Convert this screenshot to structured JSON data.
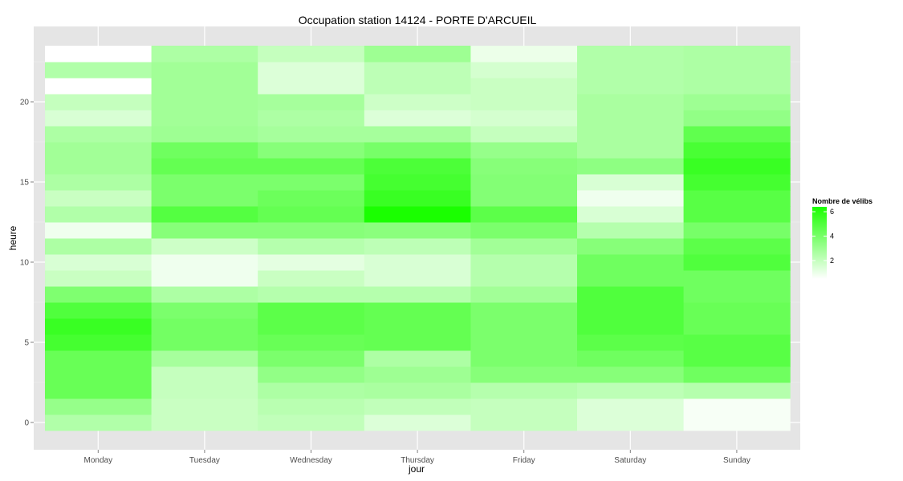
{
  "chart_data": {
    "type": "heatmap",
    "title": "Occupation station 14124 - PORTE D'ARCUEIL",
    "xlabel": "jour",
    "ylabel": "heure",
    "x_categories": [
      "Monday",
      "Tuesday",
      "Wednesday",
      "Thursday",
      "Friday",
      "Saturday",
      "Sunday"
    ],
    "y_values": [
      0,
      1,
      2,
      3,
      4,
      5,
      6,
      7,
      8,
      9,
      10,
      11,
      12,
      13,
      14,
      15,
      16,
      17,
      18,
      19,
      20,
      21,
      22,
      23
    ],
    "y_ticks": [
      0,
      5,
      10,
      15,
      20
    ],
    "ylim": [
      -0.5,
      23.5
    ],
    "grid": true,
    "legend": {
      "title": "Nombre de vélibs",
      "ticks": [
        2,
        4,
        6
      ],
      "range": [
        0.5,
        6.4
      ],
      "low_color": "#ffffff",
      "high_color": "#1aff00",
      "position": "right"
    },
    "values": [
      [
        2.5,
        1.9,
        2.1,
        1.4,
        2.0,
        1.4,
        0.7
      ],
      [
        3.2,
        1.9,
        2.3,
        2.1,
        2.0,
        1.4,
        0.7
      ],
      [
        4.4,
        2.0,
        2.6,
        2.7,
        2.4,
        2.2,
        2.4
      ],
      [
        4.4,
        2.0,
        3.3,
        3.0,
        3.6,
        3.6,
        4.2
      ],
      [
        4.4,
        2.8,
        3.9,
        2.6,
        3.9,
        4.2,
        4.8
      ],
      [
        5.3,
        4.1,
        4.4,
        4.5,
        3.9,
        4.7,
        4.8
      ],
      [
        5.6,
        4.1,
        4.7,
        4.5,
        3.9,
        5.0,
        4.4
      ],
      [
        5.0,
        3.9,
        4.7,
        4.5,
        3.9,
        5.0,
        4.4
      ],
      [
        3.8,
        2.6,
        2.4,
        2.4,
        2.9,
        5.0,
        4.2
      ],
      [
        1.9,
        0.9,
        1.9,
        1.5,
        2.4,
        4.2,
        4.2
      ],
      [
        1.5,
        0.9,
        1.2,
        1.5,
        2.4,
        4.2,
        5.0
      ],
      [
        2.6,
        1.8,
        2.4,
        2.2,
        2.9,
        3.6,
        4.7
      ],
      [
        0.9,
        3.6,
        3.6,
        3.5,
        3.9,
        2.4,
        4.0
      ],
      [
        2.5,
        4.9,
        4.5,
        6.4,
        4.7,
        1.5,
        4.8
      ],
      [
        1.9,
        3.9,
        4.3,
        5.6,
        3.7,
        0.9,
        4.8
      ],
      [
        2.6,
        3.9,
        3.9,
        5.3,
        3.7,
        1.5,
        5.3
      ],
      [
        2.9,
        4.5,
        4.5,
        5.1,
        3.6,
        3.4,
        5.6
      ],
      [
        2.9,
        4.2,
        3.6,
        4.0,
        3.2,
        2.7,
        5.2
      ],
      [
        2.6,
        3.0,
        2.8,
        2.8,
        2.0,
        2.7,
        4.6
      ],
      [
        1.5,
        2.9,
        2.6,
        1.4,
        1.6,
        2.7,
        3.3
      ],
      [
        2.0,
        2.9,
        2.8,
        1.8,
        1.9,
        2.7,
        3.0
      ],
      [
        0.5,
        2.9,
        1.4,
        2.2,
        1.9,
        2.5,
        2.6
      ],
      [
        2.5,
        2.9,
        1.4,
        2.2,
        1.6,
        2.5,
        2.6
      ],
      [
        0.5,
        2.6,
        2.0,
        3.0,
        1.0,
        2.5,
        2.6
      ]
    ]
  }
}
